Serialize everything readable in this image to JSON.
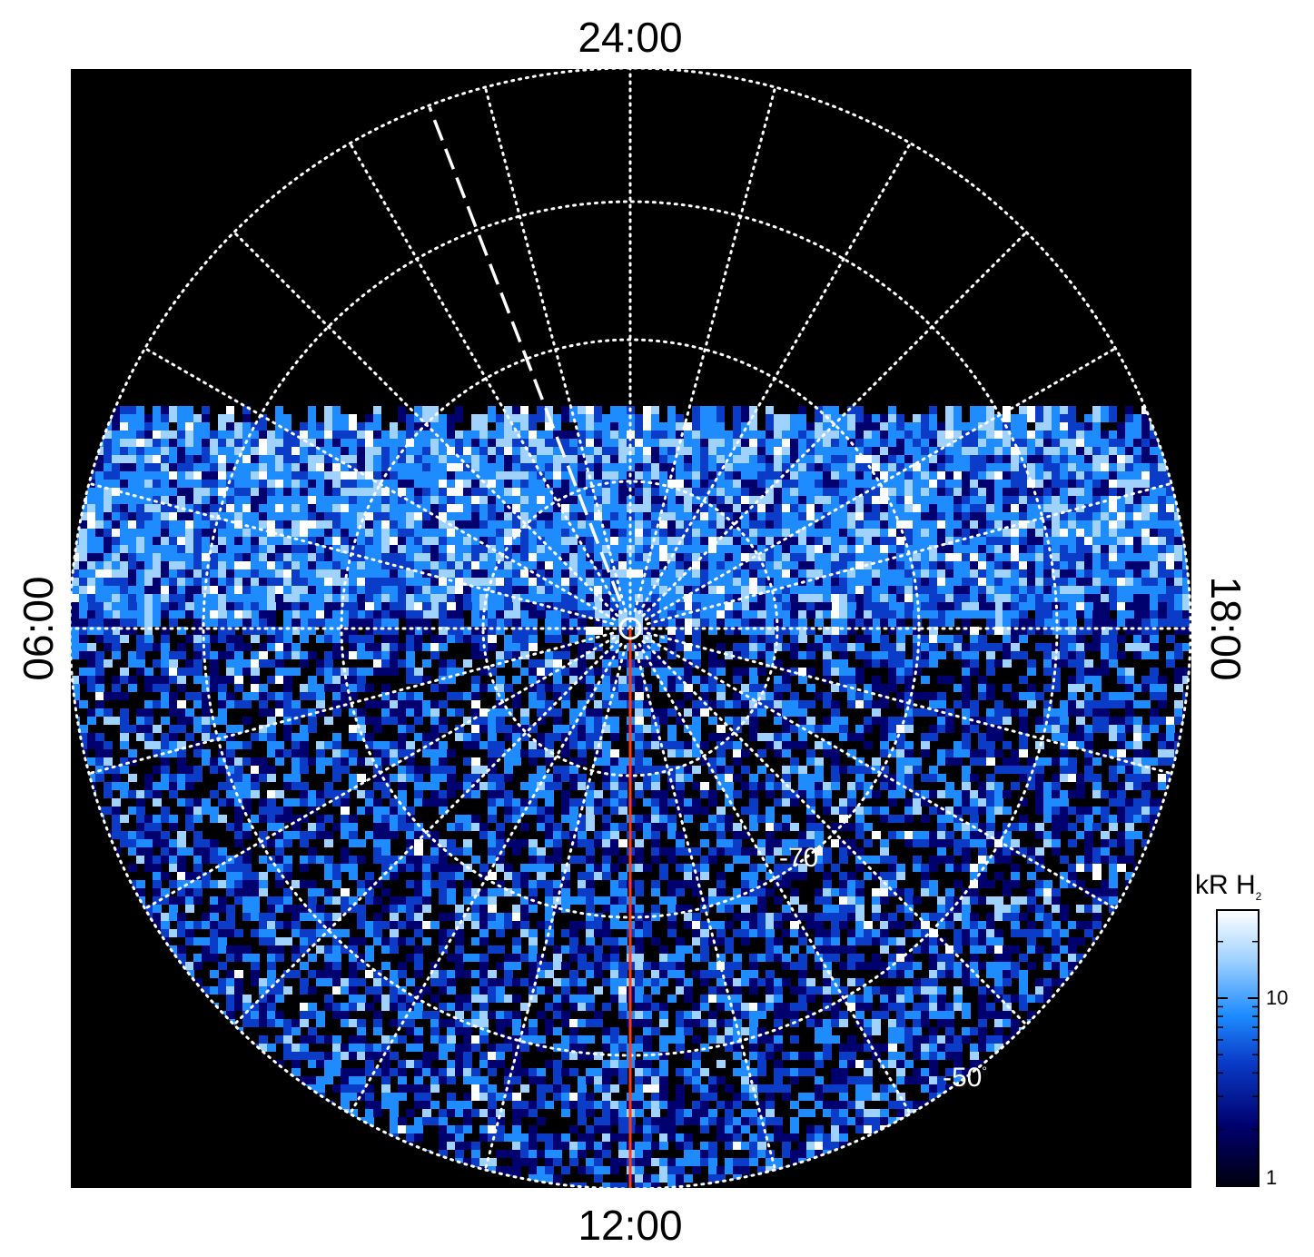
{
  "image": {
    "description_labels": {
      "top": "24:00",
      "bottom": "12:00",
      "left": "06:00",
      "right": "18:00"
    },
    "latitude_labels": [
      "-70",
      "-50"
    ],
    "degree_symbol": "°",
    "colorbar": {
      "title_main": "kR H",
      "title_sub": "2",
      "ticks": [
        "10",
        "1"
      ],
      "colors": [
        "#000010",
        "#00006e",
        "#0a3cc8",
        "#1e8cff",
        "#a0d2ff",
        "#ffffff"
      ]
    },
    "colors": {
      "background": "#000000",
      "grid": "#ffffff",
      "meridian_line": "#ff3a12"
    }
  }
}
